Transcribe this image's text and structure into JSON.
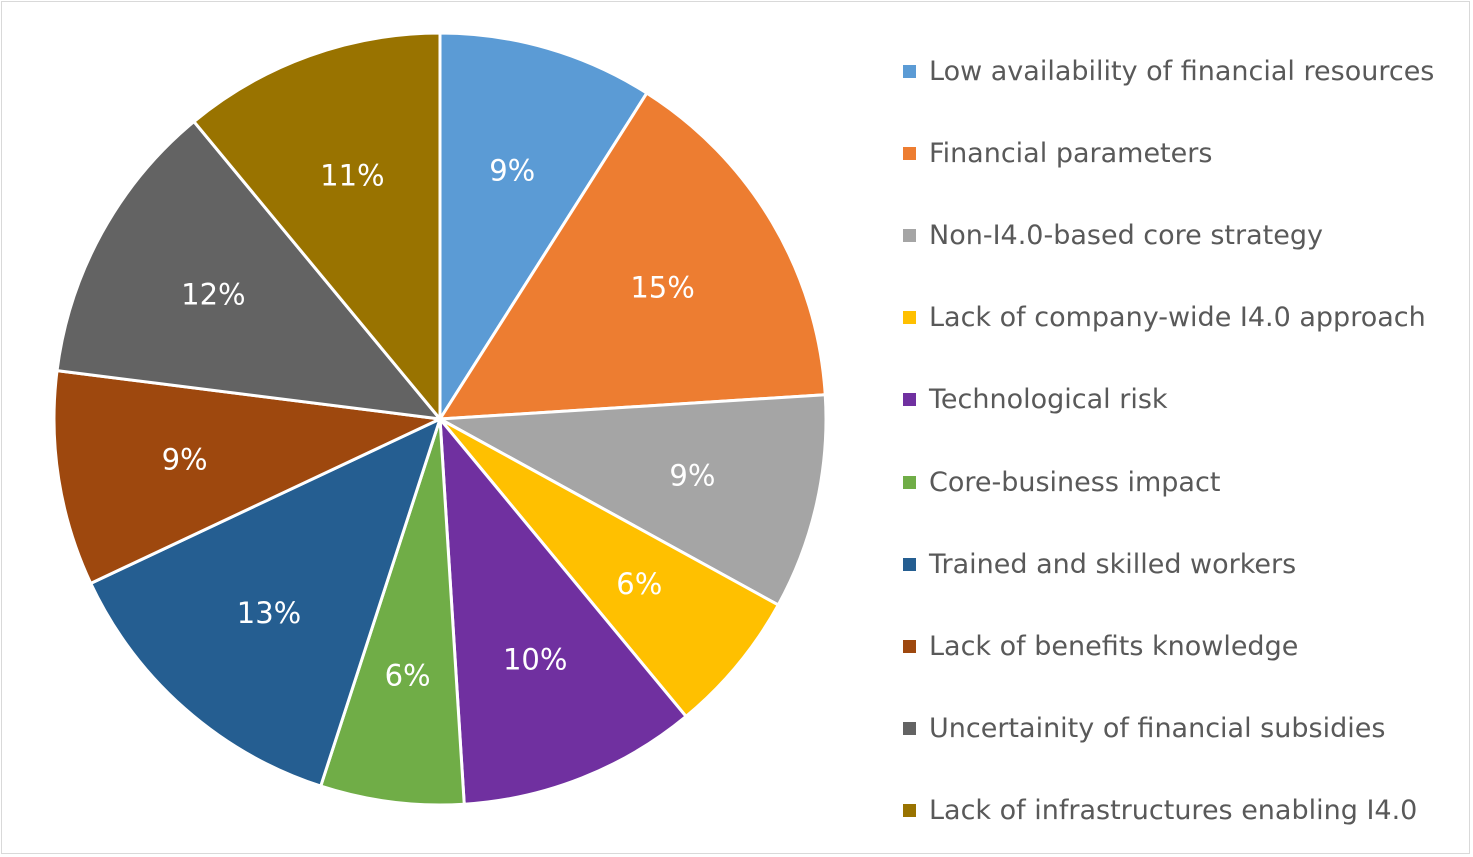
{
  "chart_data": {
    "type": "pie",
    "title": "",
    "legend_position": "right",
    "slices": [
      {
        "label": "Low availability of financial resources",
        "value": 9,
        "display": "9%",
        "color": "#5b9bd5"
      },
      {
        "label": "Financial parameters",
        "value": 15,
        "display": "15%",
        "color": "#ed7d31"
      },
      {
        "label": "Non-I4.0-based core strategy",
        "value": 9,
        "display": "9%",
        "color": "#a5a5a5"
      },
      {
        "label": "Lack of company-wide I4.0 approach",
        "value": 6,
        "display": "6%",
        "color": "#ffc000"
      },
      {
        "label": "Technological risk",
        "value": 10,
        "display": "10%",
        "color": "#7030a0"
      },
      {
        "label": "Core-business impact",
        "value": 6,
        "display": "6%",
        "color": "#70ad47"
      },
      {
        "label": "Trained and skilled workers",
        "value": 13,
        "display": "13%",
        "color": "#255e91"
      },
      {
        "label": "Lack of benefits knowledge",
        "value": 9,
        "display": "9%",
        "color": "#9e480e"
      },
      {
        "label": "Uncertainity of financial subsidies",
        "value": 12,
        "display": "12%",
        "color": "#636363"
      },
      {
        "label": "Lack of infrastructures enabling I4.0",
        "value": 11,
        "display": "11%",
        "color": "#997300"
      }
    ]
  }
}
